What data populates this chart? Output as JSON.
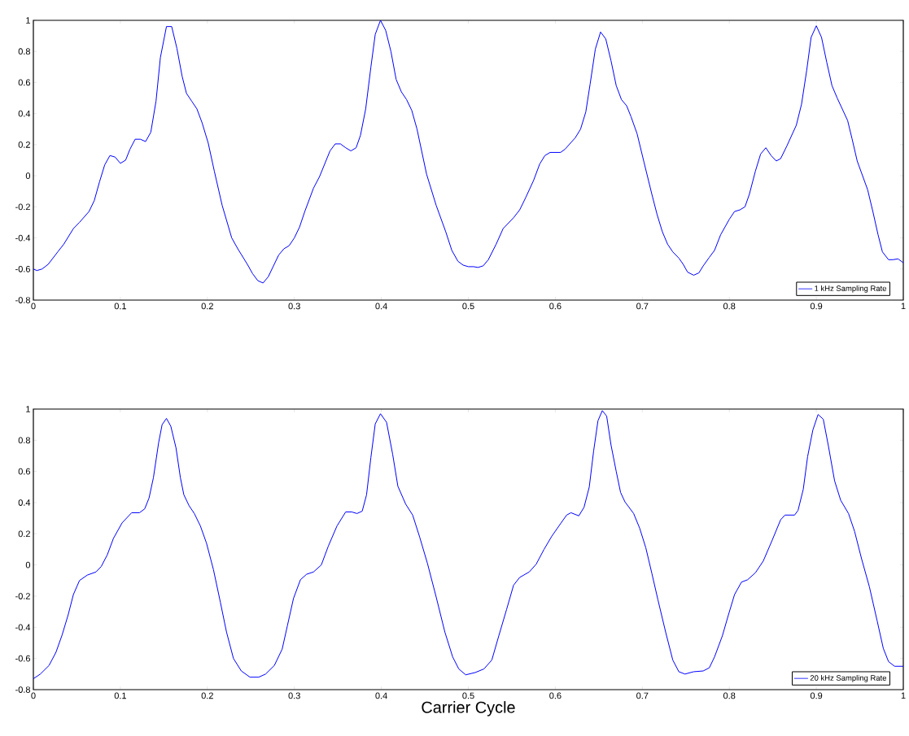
{
  "chart_data": [
    {
      "type": "line",
      "xlim": [
        0,
        1
      ],
      "ylim": [
        -0.8,
        1
      ],
      "xticks": [
        0,
        0.1,
        0.2,
        0.3,
        0.4,
        0.5,
        0.6,
        0.7,
        0.8,
        0.9,
        1
      ],
      "yticks": [
        -0.8,
        -0.6,
        -0.4,
        -0.2,
        0,
        0.2,
        0.4,
        0.6,
        0.8,
        1
      ],
      "legend": "bottom right",
      "series": [
        {
          "name": "1 kHz Sampling Rate",
          "color": "#0000ff",
          "x": [
            0,
            0.004,
            0.01,
            0.017,
            0.028,
            0.035,
            0.046,
            0.053,
            0.064,
            0.07,
            0.076,
            0.082,
            0.088,
            0.094,
            0.1,
            0.106,
            0.111,
            0.117,
            0.123,
            0.129,
            0.135,
            0.141,
            0.146,
            0.153,
            0.159,
            0.165,
            0.171,
            0.176,
            0.182,
            0.188,
            0.194,
            0.201,
            0.208,
            0.217,
            0.228,
            0.235,
            0.246,
            0.252,
            0.258,
            0.264,
            0.27,
            0.282,
            0.288,
            0.294,
            0.3,
            0.306,
            0.312,
            0.322,
            0.329,
            0.341,
            0.347,
            0.353,
            0.359,
            0.365,
            0.371,
            0.376,
            0.382,
            0.388,
            0.393,
            0.399,
            0.405,
            0.411,
            0.417,
            0.423,
            0.429,
            0.435,
            0.441,
            0.452,
            0.463,
            0.474,
            0.481,
            0.488,
            0.494,
            0.5,
            0.506,
            0.511,
            0.517,
            0.523,
            0.532,
            0.54,
            0.552,
            0.559,
            0.566,
            0.575,
            0.582,
            0.588,
            0.594,
            0.606,
            0.611,
            0.623,
            0.629,
            0.635,
            0.64,
            0.646,
            0.652,
            0.658,
            0.664,
            0.67,
            0.676,
            0.682,
            0.687,
            0.694,
            0.702,
            0.711,
            0.717,
            0.723,
            0.729,
            0.735,
            0.742,
            0.747,
            0.752,
            0.759,
            0.765,
            0.77,
            0.777,
            0.783,
            0.79,
            0.8,
            0.806,
            0.812,
            0.818,
            0.823,
            0.83,
            0.836,
            0.842,
            0.848,
            0.854,
            0.859,
            0.866,
            0.877,
            0.883,
            0.889,
            0.894,
            0.9,
            0.906,
            0.912,
            0.918,
            0.924,
            0.929,
            0.936,
            0.941,
            0.947,
            0.959,
            0.965,
            0.971,
            0.976,
            0.983,
            0.988,
            0.994,
            1
          ],
          "values": [
            -0.6,
            -0.61,
            -0.6,
            -0.57,
            -0.49,
            -0.44,
            -0.34,
            -0.3,
            -0.23,
            -0.16,
            -0.04,
            0.07,
            0.13,
            0.12,
            0.08,
            0.1,
            0.17,
            0.235,
            0.235,
            0.22,
            0.28,
            0.48,
            0.76,
            0.96,
            0.96,
            0.82,
            0.64,
            0.53,
            0.48,
            0.43,
            0.34,
            0.21,
            0.03,
            -0.19,
            -0.4,
            -0.47,
            -0.57,
            -0.63,
            -0.675,
            -0.69,
            -0.65,
            -0.51,
            -0.47,
            -0.45,
            -0.4,
            -0.33,
            -0.23,
            -0.08,
            -0.005,
            0.16,
            0.205,
            0.205,
            0.18,
            0.16,
            0.18,
            0.26,
            0.43,
            0.7,
            0.91,
            1,
            0.935,
            0.8,
            0.62,
            0.54,
            0.49,
            0.42,
            0.3,
            0.01,
            -0.19,
            -0.36,
            -0.48,
            -0.55,
            -0.575,
            -0.585,
            -0.585,
            -0.59,
            -0.58,
            -0.54,
            -0.44,
            -0.34,
            -0.27,
            -0.22,
            -0.14,
            -0.03,
            0.075,
            0.13,
            0.15,
            0.15,
            0.17,
            0.245,
            0.3,
            0.41,
            0.59,
            0.815,
            0.925,
            0.88,
            0.74,
            0.58,
            0.49,
            0.45,
            0.38,
            0.27,
            0.085,
            -0.12,
            -0.25,
            -0.36,
            -0.44,
            -0.49,
            -0.53,
            -0.57,
            -0.62,
            -0.64,
            -0.625,
            -0.58,
            -0.525,
            -0.48,
            -0.38,
            -0.28,
            -0.23,
            -0.22,
            -0.2,
            -0.12,
            0.03,
            0.14,
            0.18,
            0.13,
            0.095,
            0.11,
            0.19,
            0.325,
            0.46,
            0.68,
            0.89,
            0.965,
            0.89,
            0.73,
            0.58,
            0.5,
            0.44,
            0.355,
            0.24,
            0.095,
            -0.09,
            -0.23,
            -0.38,
            -0.49,
            -0.54,
            -0.54,
            -0.535,
            -0.56
          ]
        }
      ]
    },
    {
      "type": "line",
      "xlim": [
        0,
        1
      ],
      "ylim": [
        -0.8,
        1
      ],
      "xticks": [
        0,
        0.1,
        0.2,
        0.3,
        0.4,
        0.5,
        0.6,
        0.7,
        0.8,
        0.9,
        1
      ],
      "yticks": [
        -0.8,
        -0.6,
        -0.4,
        -0.2,
        0,
        0.2,
        0.4,
        0.6,
        0.8,
        1
      ],
      "legend": "bottom right",
      "xlabel": "Carrier Cycle",
      "series": [
        {
          "name": "20 kHz Sampling Rate",
          "color": "#0000ff",
          "x": [
            0,
            0.008,
            0.018,
            0.026,
            0.033,
            0.04,
            0.046,
            0.053,
            0.062,
            0.072,
            0.078,
            0.085,
            0.092,
            0.102,
            0.113,
            0.122,
            0.128,
            0.133,
            0.138,
            0.144,
            0.148,
            0.153,
            0.158,
            0.164,
            0.169,
            0.173,
            0.179,
            0.185,
            0.192,
            0.199,
            0.207,
            0.215,
            0.222,
            0.23,
            0.239,
            0.249,
            0.259,
            0.267,
            0.277,
            0.286,
            0.292,
            0.299,
            0.307,
            0.314,
            0.322,
            0.331,
            0.339,
            0.349,
            0.359,
            0.366,
            0.372,
            0.378,
            0.383,
            0.388,
            0.393,
            0.399,
            0.406,
            0.413,
            0.419,
            0.428,
            0.436,
            0.444,
            0.453,
            0.463,
            0.473,
            0.482,
            0.489,
            0.497,
            0.508,
            0.518,
            0.527,
            0.535,
            0.544,
            0.552,
            0.559,
            0.57,
            0.578,
            0.587,
            0.596,
            0.606,
            0.613,
            0.618,
            0.627,
            0.633,
            0.639,
            0.644,
            0.649,
            0.654,
            0.659,
            0.664,
            0.67,
            0.675,
            0.68,
            0.69,
            0.697,
            0.704,
            0.711,
            0.718,
            0.727,
            0.735,
            0.742,
            0.749,
            0.759,
            0.77,
            0.777,
            0.783,
            0.792,
            0.799,
            0.806,
            0.814,
            0.821,
            0.83,
            0.839,
            0.849,
            0.859,
            0.864,
            0.875,
            0.879,
            0.885,
            0.89,
            0.896,
            0.902,
            0.908,
            0.914,
            0.921,
            0.928,
            0.937,
            0.944,
            0.952,
            0.961,
            0.97,
            0.977,
            0.983,
            0.99,
            1
          ],
          "values": [
            -0.73,
            -0.7,
            -0.645,
            -0.56,
            -0.45,
            -0.32,
            -0.19,
            -0.1,
            -0.065,
            -0.045,
            -0.01,
            0.065,
            0.17,
            0.27,
            0.335,
            0.335,
            0.36,
            0.43,
            0.56,
            0.785,
            0.9,
            0.94,
            0.89,
            0.75,
            0.56,
            0.45,
            0.38,
            0.33,
            0.25,
            0.14,
            -0.03,
            -0.24,
            -0.43,
            -0.6,
            -0.68,
            -0.72,
            -0.72,
            -0.7,
            -0.645,
            -0.54,
            -0.39,
            -0.215,
            -0.095,
            -0.06,
            -0.045,
            0,
            0.12,
            0.25,
            0.34,
            0.34,
            0.33,
            0.345,
            0.45,
            0.69,
            0.905,
            0.97,
            0.915,
            0.71,
            0.505,
            0.39,
            0.32,
            0.18,
            0.01,
            -0.205,
            -0.43,
            -0.59,
            -0.667,
            -0.705,
            -0.69,
            -0.667,
            -0.61,
            -0.455,
            -0.285,
            -0.13,
            -0.08,
            -0.045,
            0.005,
            0.1,
            0.185,
            0.265,
            0.32,
            0.335,
            0.315,
            0.37,
            0.5,
            0.73,
            0.925,
            0.99,
            0.955,
            0.77,
            0.6,
            0.465,
            0.405,
            0.33,
            0.235,
            0.11,
            -0.055,
            -0.225,
            -0.435,
            -0.61,
            -0.685,
            -0.7,
            -0.685,
            -0.68,
            -0.66,
            -0.59,
            -0.455,
            -0.32,
            -0.19,
            -0.11,
            -0.095,
            -0.05,
            0.025,
            0.155,
            0.29,
            0.32,
            0.32,
            0.35,
            0.485,
            0.695,
            0.865,
            0.965,
            0.935,
            0.76,
            0.54,
            0.415,
            0.33,
            0.215,
            0.04,
            -0.14,
            -0.36,
            -0.535,
            -0.62,
            -0.65,
            -0.65
          ]
        }
      ]
    }
  ]
}
